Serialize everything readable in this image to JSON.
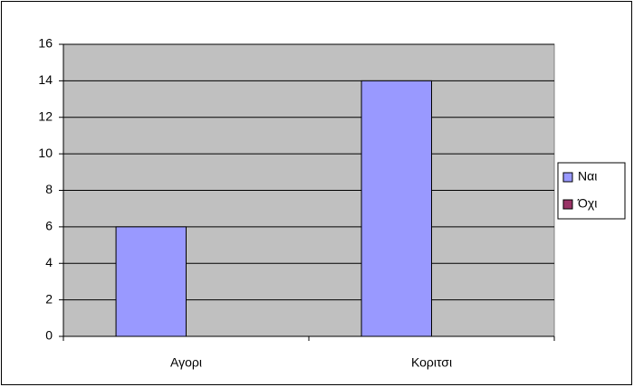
{
  "chart_data": {
    "type": "bar",
    "categories": [
      "Αγορι",
      "Κοριτσι"
    ],
    "series": [
      {
        "name": "Ναι",
        "color": "#9999ff",
        "values": [
          6,
          14
        ]
      },
      {
        "name": "Όχι",
        "color": "#993366",
        "values": [
          0,
          0
        ]
      }
    ],
    "ylim": [
      0,
      16
    ],
    "yticks": [
      0,
      2,
      4,
      6,
      8,
      10,
      12,
      14,
      16
    ],
    "grid": true,
    "legend": "right"
  }
}
